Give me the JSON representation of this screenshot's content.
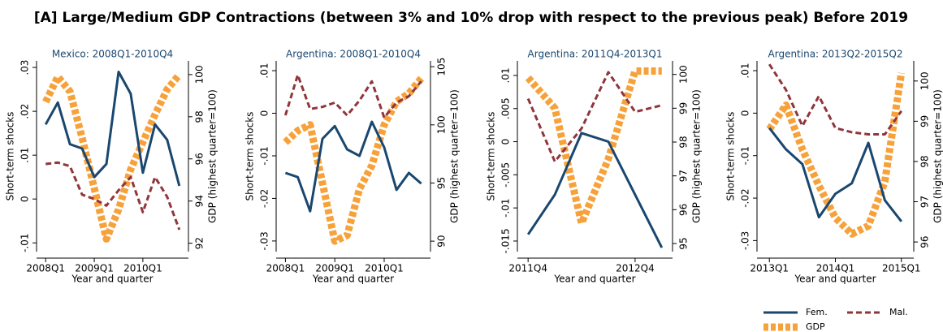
{
  "title": "[A] Large/Medium GDP Contractions (between 3% and 10% drop with respect to the previous peak) Before 2019",
  "legend_position": "bottom-right",
  "chart_data": [
    {
      "type": "line",
      "title": "Mexico: 2008Q1-2010Q4",
      "xlabel": "Year and quarter",
      "ylabel": "Short-term shocks",
      "y2label": "GDP (highest quarter=100)",
      "categories": [
        "2008Q1",
        null,
        null,
        null,
        "2009Q1",
        null,
        null,
        null,
        "2010Q1",
        null,
        null,
        null
      ],
      "series": [
        {
          "name": "Fem.",
          "color": "#1a476f",
          "values": [
            0.017,
            0.022,
            0.0125,
            0.0115,
            0.005,
            0.008,
            0.029,
            0.024,
            0.006,
            0.017,
            0.0135,
            0.003
          ]
        },
        {
          "name": "Mal.",
          "color": "#90353b",
          "values": [
            0.008,
            0.0083,
            0.0075,
            0.001,
            0,
            -0.0015,
            0.002,
            0.005,
            -0.003,
            0.005,
            0.0005,
            -0.007
          ]
        },
        {
          "name": "GDP",
          "color": "#f7a13a",
          "axis": "y2",
          "values": [
            98.7,
            99.9,
            99.2,
            97.0,
            94.6,
            92.2,
            93.6,
            95.5,
            96.8,
            98.1,
            99.3,
            100
          ]
        }
      ],
      "ylim": [
        -0.012,
        0.0315
      ],
      "yticks": [
        {
          "value": -0.01,
          "label": "-.01"
        },
        0,
        {
          "value": 0.01,
          "label": ".01"
        },
        {
          "value": 0.02,
          "label": ".02"
        },
        {
          "value": 0.03,
          "label": ".03"
        }
      ],
      "y2lim": [
        91.6,
        100.65
      ],
      "y2ticks": [
        92,
        94,
        96,
        98,
        100
      ]
    },
    {
      "type": "line",
      "title": "Argentina: 2008Q1-2010Q4",
      "xlabel": "Year and quarter",
      "ylabel": "Short-term shocks",
      "y2label": "GDP (highest quarter=100)",
      "categories": [
        "2008Q1",
        null,
        null,
        null,
        "2009Q1",
        null,
        null,
        null,
        "2010Q1",
        null,
        null,
        null
      ],
      "series": [
        {
          "name": "Fem.",
          "color": "#1a476f",
          "values": [
            -0.014,
            -0.015,
            -0.023,
            -0.006,
            -0.003,
            -0.0085,
            -0.01,
            -0.002,
            -0.008,
            -0.018,
            -0.014,
            -0.0165
          ]
        },
        {
          "name": "Mal.",
          "color": "#90353b",
          "values": [
            -0.0005,
            0.009,
            0.001,
            0.0015,
            0.0025,
            -0.0005,
            0.003,
            0.0075,
            -0.001,
            0.0025,
            0.004,
            0.0075
          ]
        },
        {
          "name": "GDP",
          "color": "#f7a13a",
          "axis": "y2",
          "values": [
            98.5,
            99.5,
            100,
            95,
            90,
            90.5,
            94.5,
            96.5,
            100,
            102,
            102.7,
            104
          ]
        }
      ],
      "ylim": [
        -0.0325,
        0.0123
      ],
      "yticks": [
        {
          "value": -0.03,
          "label": "-.03"
        },
        {
          "value": -0.02,
          "label": "-.02"
        },
        {
          "value": -0.01,
          "label": "-.01"
        },
        0,
        {
          "value": 0.01,
          "label": ".01"
        }
      ],
      "y2lim": [
        89.1,
        105.5
      ],
      "y2ticks": [
        90,
        95,
        100,
        105
      ]
    },
    {
      "type": "line",
      "title": "Argentina: 2011Q4-2013Q1",
      "xlabel": "Year and quarter",
      "ylabel": "Short-term shocks",
      "y2label": "GDP (highest quarter=100)",
      "categories": [
        "2011Q4",
        null,
        null,
        null,
        "2012Q4",
        null
      ],
      "series": [
        {
          "name": "Fem.",
          "color": "#1a476f",
          "values": [
            -0.014,
            -0.008,
            0.0013,
            0,
            -0.008,
            -0.016
          ]
        },
        {
          "name": "Mal.",
          "color": "#90353b",
          "values": [
            0.0065,
            -0.003,
            0.002,
            0.0105,
            0.0045,
            0.0055
          ]
        },
        {
          "name": "GDP",
          "color": "#f7a13a",
          "axis": "y2",
          "values": [
            99.9,
            99,
            95.6,
            97.5,
            100.1,
            100.1
          ]
        }
      ],
      "ylim": [
        -0.0166,
        0.0122
      ],
      "yticks": [
        {
          "value": -0.015,
          "label": "-.015"
        },
        {
          "value": -0.01,
          "label": "-.01"
        },
        {
          "value": -0.005,
          "label": "-.005"
        },
        0,
        {
          "value": 0.005,
          "label": ".005"
        },
        {
          "value": 0.01,
          "label": ".01"
        }
      ],
      "y2lim": [
        94.76,
        100.4
      ],
      "y2ticks": [
        95,
        96,
        97,
        98,
        99,
        100
      ]
    },
    {
      "type": "line",
      "title": "Argentina: 2013Q2-2015Q2",
      "xlabel": "Year and quarter",
      "ylabel": "Short-term shocks",
      "y2label": "GDP (highest quarter=100)",
      "categories": [
        "2013Q1",
        null,
        null,
        null,
        "2014Q1",
        null,
        null,
        null,
        "2015Q1"
      ],
      "series": [
        {
          "name": "Fem.",
          "color": "#1a476f",
          "values": [
            -0.0035,
            -0.0085,
            -0.012,
            -0.0245,
            -0.019,
            -0.0165,
            -0.007,
            -0.0205,
            -0.0255
          ]
        },
        {
          "name": "Mal.",
          "color": "#90353b",
          "values": [
            0.0115,
            0.0055,
            -0.003,
            0.004,
            -0.0035,
            -0.0045,
            -0.005,
            -0.005,
            0.0005
          ]
        },
        {
          "name": "GDP",
          "color": "#f7a13a",
          "axis": "y2",
          "values": [
            98.8,
            99.4,
            98.3,
            97.4,
            96.6,
            96.2,
            96.4,
            97.5,
            100.2
          ]
        }
      ],
      "ylim": [
        -0.0326,
        0.0123
      ],
      "yticks": [
        {
          "value": -0.03,
          "label": "-.03"
        },
        {
          "value": -0.02,
          "label": "-.02"
        },
        {
          "value": -0.01,
          "label": "-.01"
        },
        0,
        {
          "value": 0.01,
          "label": ".01"
        }
      ],
      "y2lim": [
        95.76,
        100.5
      ],
      "y2ticks": [
        96,
        97,
        98,
        99,
        100
      ]
    }
  ]
}
